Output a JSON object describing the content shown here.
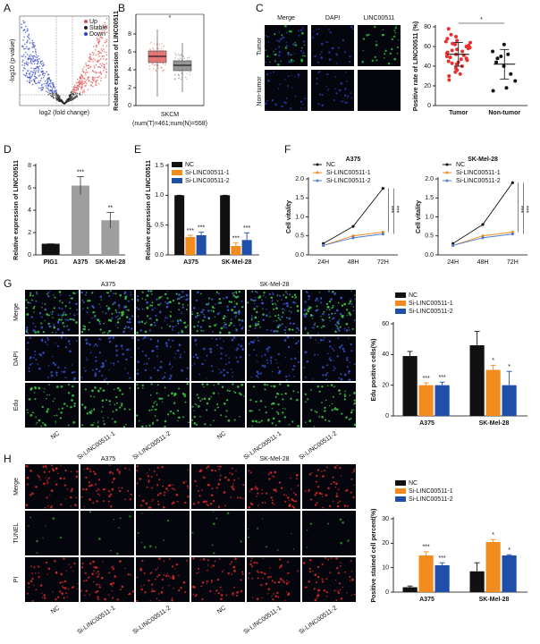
{
  "figure": {
    "letters": [
      "A",
      "B",
      "C",
      "D",
      "E",
      "F",
      "G",
      "H"
    ],
    "C": {
      "columns": [
        "Merge",
        "DAPI",
        "LINC00511"
      ],
      "rows": [
        "Tumor",
        "Non-tumor"
      ]
    },
    "G": {
      "groups": [
        "A375",
        "SK-Mel-28"
      ],
      "rows": [
        "Merge",
        "DAPI",
        "Edu"
      ],
      "columns": [
        "NC",
        "Si-LINC00511-1",
        "Si-LINC00511-2",
        "NC",
        "Si-LINC00511-1",
        "Si-LINC00511-2"
      ]
    },
    "H": {
      "groups": [
        "A375",
        "SK-Mel-28"
      ],
      "rows": [
        "Merge",
        "TUNEL",
        "PI"
      ],
      "columns": [
        "NC",
        "Si-LINC00511-1",
        "Si-LINC00511-2",
        "NC",
        "Si-LINC00511-1",
        "Si-LINC00511-2"
      ]
    }
  },
  "chart_data": [
    {
      "type": "volcano",
      "xlabel": "log2 (fold change)",
      "ylabel": "-log10 (p-value)",
      "legend": [
        {
          "name": "Up",
          "color": "#e34a4a"
        },
        {
          "name": "Stable",
          "color": "#222222"
        },
        {
          "name": "Down",
          "color": "#2a3fc4"
        }
      ]
    },
    {
      "type": "box",
      "ylabel": "Relative expression of LINC00511",
      "xlabel": "SKCM",
      "subtitle": "(num(T)=461;num(N)=558)",
      "annotation": "*",
      "ylim": [
        0,
        10
      ],
      "yticks": [
        0,
        2,
        4,
        6,
        8
      ],
      "boxes": [
        {
          "color": "#e36a6a",
          "min": 1,
          "q1": 4.8,
          "median": 5.5,
          "q3": 6.1,
          "max": 8.5
        },
        {
          "color": "#8c8c8c",
          "min": 1.5,
          "q1": 3.9,
          "median": 4.5,
          "q3": 5.0,
          "max": 7
        }
      ]
    },
    {
      "type": "dot",
      "ylabel": "Positive rate of LINC00511 (%)",
      "categories": [
        "Tumor",
        "Non-tumor"
      ],
      "ylim": [
        0,
        80
      ],
      "yticks": [
        0,
        20,
        40,
        60,
        80
      ],
      "annotation": "*",
      "colors": [
        "#e83030",
        "#111111"
      ],
      "points": [
        [
          78,
          72,
          70,
          68,
          66,
          65,
          64,
          63,
          62,
          61,
          60,
          59,
          58,
          57,
          56,
          55,
          54,
          53,
          52,
          51,
          50,
          49,
          48,
          47,
          46,
          45,
          44,
          43,
          42,
          40,
          38,
          36,
          34,
          32,
          30,
          26
        ],
        [
          62,
          55,
          52,
          50,
          48,
          44,
          40,
          32,
          25,
          18,
          15
        ]
      ],
      "means": [
        52,
        42
      ],
      "sds": [
        12,
        15
      ]
    },
    {
      "type": "bar",
      "ylabel": "Relative expression of LINC00511",
      "categories": [
        "PIG1",
        "A375",
        "SK-Mel-28"
      ],
      "values": [
        1,
        6.2,
        3.1
      ],
      "errors": [
        0,
        0.8,
        0.7
      ],
      "colors": [
        "#111111",
        "#9e9e9e",
        "#9e9e9e"
      ],
      "ylim": [
        0,
        8
      ],
      "yticks": [
        0,
        2,
        4,
        6,
        8
      ],
      "annotations": [
        {
          "index": 1,
          "text": "***"
        },
        {
          "index": 2,
          "text": "**"
        }
      ]
    },
    {
      "type": "grouped_bar",
      "ylabel": "Relative expression of LINC00511",
      "categories": [
        "A375",
        "SK-Mel-28"
      ],
      "ylim": [
        0,
        1.5
      ],
      "yticks": [
        {
          "value": 0,
          "label": "0.0"
        },
        0.5,
        {
          "value": 1,
          "label": "1.0"
        },
        1.5
      ],
      "series": [
        {
          "name": "NC",
          "color": "#111111",
          "values": [
            1,
            1
          ],
          "errors": [
            0,
            0
          ]
        },
        {
          "name": "Si-LINC00511-1",
          "color": "#f28c1f",
          "values": [
            0.3,
            0.15
          ],
          "errors": [
            0.03,
            0.05
          ]
        },
        {
          "name": "Si-LINC00511-2",
          "color": "#1f4fa8",
          "values": [
            0.33,
            0.25
          ],
          "errors": [
            0.05,
            0.12
          ]
        }
      ],
      "annotations": [
        {
          "series": 1,
          "index": 0,
          "text": "***"
        },
        {
          "series": 2,
          "index": 0,
          "text": "***"
        },
        {
          "series": 1,
          "index": 1,
          "text": "***"
        },
        {
          "series": 2,
          "index": 1,
          "text": "***"
        }
      ]
    },
    {
      "type": "line",
      "title": "A375",
      "ylabel": "Cell vitality",
      "categories": [
        "24H",
        "48H",
        "72H"
      ],
      "ylim": [
        0,
        2
      ],
      "yticks": [
        {
          "value": 0,
          "label": "0.0"
        },
        0.5,
        {
          "value": 1,
          "label": "1.0"
        },
        1.5,
        {
          "value": 2,
          "label": "2.0"
        }
      ],
      "series": [
        {
          "name": "NC",
          "color": "#111111",
          "values": [
            0.3,
            0.75,
            1.75
          ]
        },
        {
          "name": "Si-LINC00511-1",
          "color": "#f28c1f",
          "values": [
            0.25,
            0.5,
            0.6
          ]
        },
        {
          "name": "Si-LINC00511-2",
          "color": "#4a7fd6",
          "values": [
            0.25,
            0.45,
            0.55
          ]
        }
      ],
      "annotations": [
        "***",
        "***"
      ]
    },
    {
      "type": "line",
      "title": "SK-Mel-28",
      "ylabel": "Cell vitality",
      "categories": [
        "24H",
        "48H",
        "72H"
      ],
      "ylim": [
        0,
        2
      ],
      "yticks": [
        {
          "value": 0,
          "label": "0.0"
        },
        0.5,
        {
          "value": 1,
          "label": "1.0"
        },
        1.5,
        {
          "value": 2,
          "label": "2.0"
        }
      ],
      "series": [
        {
          "name": "NC",
          "color": "#111111",
          "values": [
            0.3,
            0.8,
            1.9
          ]
        },
        {
          "name": "Si-LINC00511-1",
          "color": "#f28c1f",
          "values": [
            0.25,
            0.5,
            0.6
          ]
        },
        {
          "name": "Si-LINC00511-2",
          "color": "#4a7fd6",
          "values": [
            0.25,
            0.45,
            0.55
          ]
        }
      ],
      "annotations": [
        "***",
        "***"
      ]
    },
    {
      "type": "grouped_bar",
      "ylabel": "Edu positive cells(%)",
      "categories": [
        "A375",
        "SK-Mel-28"
      ],
      "ylim": [
        0,
        60
      ],
      "yticks": [
        0,
        20,
        40,
        60
      ],
      "series": [
        {
          "name": "NC",
          "color": "#111111",
          "values": [
            39,
            46
          ],
          "errors": [
            3,
            9
          ]
        },
        {
          "name": "Si-LINC00511-1",
          "color": "#f28c1f",
          "values": [
            20,
            30
          ],
          "errors": [
            1.5,
            3
          ]
        },
        {
          "name": "Si-LINC00511-2",
          "color": "#1f4fa8",
          "values": [
            20,
            20
          ],
          "errors": [
            2,
            9
          ]
        }
      ],
      "annotations": [
        {
          "series": 1,
          "index": 0,
          "text": "***"
        },
        {
          "series": 2,
          "index": 0,
          "text": "***"
        },
        {
          "series": 1,
          "index": 1,
          "text": "*"
        },
        {
          "series": 2,
          "index": 1,
          "text": "*"
        }
      ]
    },
    {
      "type": "grouped_bar",
      "ylabel": "Positive stained cell percent(%)",
      "categories": [
        "A375",
        "SK-Mel-28"
      ],
      "ylim": [
        0,
        30
      ],
      "yticks": [
        0,
        10,
        20,
        30
      ],
      "series": [
        {
          "name": "NC",
          "color": "#111111",
          "values": [
            2,
            8.5
          ],
          "errors": [
            0.5,
            3.5
          ]
        },
        {
          "name": "Si-LINC00511-1",
          "color": "#f28c1f",
          "values": [
            15,
            20.5
          ],
          "errors": [
            1.5,
            1
          ]
        },
        {
          "name": "Si-LINC00511-2",
          "color": "#1f4fa8",
          "values": [
            11,
            15
          ],
          "errors": [
            1,
            0.3
          ]
        }
      ],
      "annotations": [
        {
          "series": 1,
          "index": 0,
          "text": "***"
        },
        {
          "series": 2,
          "index": 0,
          "text": "***"
        },
        {
          "series": 1,
          "index": 1,
          "text": "*"
        },
        {
          "series": 2,
          "index": 1,
          "text": "*"
        }
      ]
    }
  ]
}
